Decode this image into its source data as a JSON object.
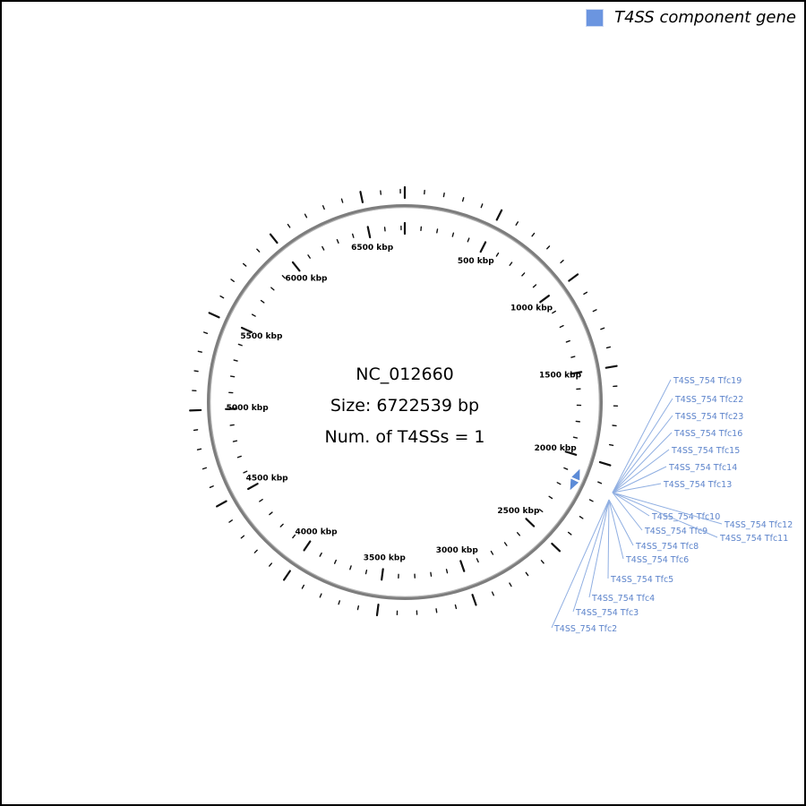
{
  "legend": {
    "label": "T4SS component gene",
    "swatch_color": "#6b95e0"
  },
  "center": {
    "accession": "NC_012660",
    "size": "Size: 6722539 bp",
    "num_t4ss": "Num. of T4SSs = 1"
  },
  "chart_data": {
    "type": "circular-genome-map",
    "accession": "NC_012660",
    "genome_size_bp": 6722539,
    "num_t4ss": 1,
    "tick_minor_interval_kbp": 100,
    "tick_major_interval_kbp": 500,
    "tick_labels": [
      {
        "kbp": 500,
        "label": "500 kbp"
      },
      {
        "kbp": 1000,
        "label": "1000 kbp"
      },
      {
        "kbp": 1500,
        "label": "1500 kbp"
      },
      {
        "kbp": 2000,
        "label": "2000 kbp"
      },
      {
        "kbp": 2500,
        "label": "2500 kbp"
      },
      {
        "kbp": 3000,
        "label": "3000 kbp"
      },
      {
        "kbp": 3500,
        "label": "3500 kbp"
      },
      {
        "kbp": 4000,
        "label": "4000 kbp"
      },
      {
        "kbp": 4500,
        "label": "4500 kbp"
      },
      {
        "kbp": 5000,
        "label": "5000 kbp"
      },
      {
        "kbp": 5500,
        "label": "5500 kbp"
      },
      {
        "kbp": 6000,
        "label": "6000 kbp"
      },
      {
        "kbp": 6500,
        "label": "6500 kbp"
      }
    ],
    "t4ss_markers": [
      {
        "kbp": 2110,
        "strand": "forward"
      },
      {
        "kbp": 2165,
        "strand": "reverse"
      }
    ],
    "gene_labels": [
      "T4SS_754 Tfc19",
      "T4SS_754 Tfc22",
      "T4SS_754 Tfc23",
      "T4SS_754 Tfc16",
      "T4SS_754 Tfc15",
      "T4SS_754 Tfc14",
      "T4SS_754 Tfc13",
      "T4SS_754 Tfc10",
      "T4SS_754 Tfc12",
      "T4SS_754 Tfc9",
      "T4SS_754 Tfc11",
      "T4SS_754 Tfc8",
      "T4SS_754 Tfc6",
      "T4SS_754 Tfc5",
      "T4SS_754 Tfc4",
      "T4SS_754 Tfc3",
      "T4SS_754 Tfc2"
    ],
    "colors": {
      "ring": "#7d7d7d",
      "ring_highlight": "#b3b3b3",
      "tick": "#111111",
      "gene": "#5b8bd8",
      "gene_label": "#5d84cb",
      "leader": "#90afe2"
    }
  }
}
